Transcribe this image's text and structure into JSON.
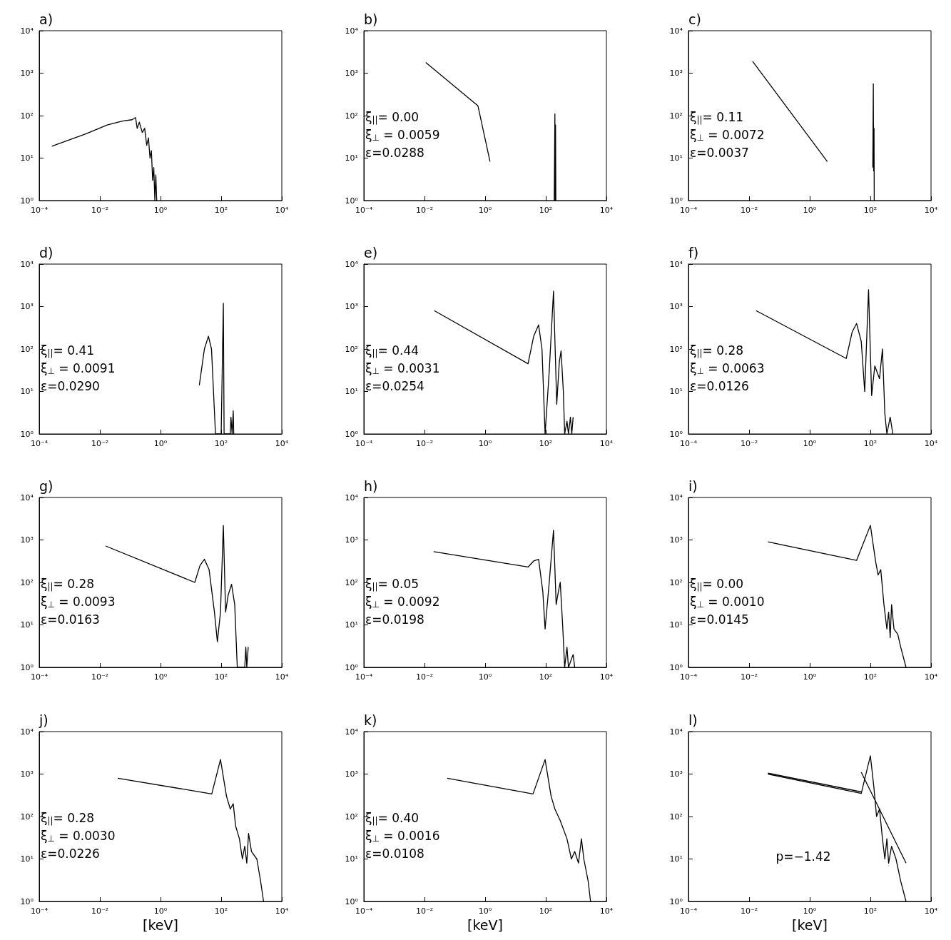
{
  "chart_data": [
    {
      "type": "line",
      "title": "a)",
      "log": "xy",
      "xlim": [
        0.0001,
        10000
      ],
      "ylim": [
        1,
        10000
      ],
      "xticks": [
        {
          "value": 0.0001,
          "label": "10⁻⁴"
        },
        {
          "value": 0.01,
          "label": "10⁻²"
        },
        {
          "value": 1,
          "label": "10⁰"
        },
        {
          "value": 100,
          "label": "10²"
        },
        {
          "value": 10000,
          "label": "10⁴"
        }
      ],
      "yticks": [
        {
          "value": 1,
          "label": "10⁰"
        },
        {
          "value": 10,
          "label": "10¹"
        },
        {
          "value": 100,
          "label": "10²"
        },
        {
          "value": 1000,
          "label": "10³"
        },
        {
          "value": 10000,
          "label": "10⁴"
        }
      ],
      "series": [
        {
          "color": "#000000",
          "x": [
            0.00026,
            0.0034,
            0.0174,
            0.04,
            0.06,
            0.115,
            0.15,
            0.17,
            0.2,
            0.25,
            0.3,
            0.35,
            0.4,
            0.45,
            0.5,
            0.55,
            0.6,
            0.65,
            0.7,
            0.75
          ],
          "values": [
            19,
            37,
            60,
            70,
            75,
            80,
            90,
            50,
            70,
            40,
            50,
            20,
            30,
            10,
            15,
            3,
            6,
            1,
            4,
            1
          ]
        }
      ]
    },
    {
      "type": "line",
      "title": "b)",
      "log": "xy",
      "xlim": [
        0.0001,
        10000
      ],
      "ylim": [
        1,
        10000
      ],
      "xticks": [
        {
          "value": 0.0001,
          "label": "10⁻⁴"
        },
        {
          "value": 0.01,
          "label": "10⁻²"
        },
        {
          "value": 1,
          "label": "10⁰"
        },
        {
          "value": 100,
          "label": "10²"
        },
        {
          "value": 10000,
          "label": "10⁴"
        }
      ],
      "yticks": [
        {
          "value": 1,
          "label": "10⁰"
        },
        {
          "value": 10,
          "label": "10¹"
        },
        {
          "value": 100,
          "label": "10²"
        },
        {
          "value": 1000,
          "label": "10³"
        },
        {
          "value": 10000,
          "label": "10⁴"
        }
      ],
      "annotations": [
        "ξ$_{||}$= 0.00",
        "ξ$_{⊥}$ = 0.0059",
        "ε=0.0288"
      ],
      "series": [
        {
          "color": "#000000",
          "x": [
            0.011,
            0.58,
            1.45,
            100,
            190,
            200,
            205,
            210,
            215
          ],
          "values": [
            1780,
            170,
            8.3,
            null,
            1,
            110,
            1,
            60,
            1
          ]
        }
      ]
    },
    {
      "type": "line",
      "title": "c)",
      "log": "xy",
      "xlim": [
        0.0001,
        10000
      ],
      "ylim": [
        1,
        10000
      ],
      "xticks": [
        {
          "value": 0.0001,
          "label": "10⁻⁴"
        },
        {
          "value": 0.01,
          "label": "10⁻²"
        },
        {
          "value": 1,
          "label": "10⁰"
        },
        {
          "value": 100,
          "label": "10²"
        },
        {
          "value": 10000,
          "label": "10⁴"
        }
      ],
      "yticks": [
        {
          "value": 1,
          "label": "10⁰"
        },
        {
          "value": 10,
          "label": "10¹"
        },
        {
          "value": 100,
          "label": "10²"
        },
        {
          "value": 1000,
          "label": "10³"
        },
        {
          "value": 10000,
          "label": "10⁴"
        }
      ],
      "annotations": [
        "ξ$_{||}$= 0.11",
        "ξ$_{⊥}$ = 0.0072",
        "ε=0.0037"
      ],
      "series": [
        {
          "color": "#000000",
          "x": [
            0.013,
            3.8,
            50,
            120,
            125,
            128,
            132,
            134
          ],
          "values": [
            1900,
            8.3,
            null,
            6,
            560,
            5,
            50,
            1
          ]
        }
      ]
    },
    {
      "type": "line",
      "title": "d)",
      "log": "xy",
      "xlim": [
        0.0001,
        10000
      ],
      "ylim": [
        1,
        10000
      ],
      "xticks": [
        {
          "value": 0.0001,
          "label": "10⁻⁴"
        },
        {
          "value": 0.01,
          "label": "10⁻²"
        },
        {
          "value": 1,
          "label": "10⁰"
        },
        {
          "value": 100,
          "label": "10²"
        },
        {
          "value": 10000,
          "label": "10⁴"
        }
      ],
      "yticks": [
        {
          "value": 1,
          "label": "10⁰"
        },
        {
          "value": 10,
          "label": "10¹"
        },
        {
          "value": 100,
          "label": "10²"
        },
        {
          "value": 1000,
          "label": "10³"
        },
        {
          "value": 10000,
          "label": "10⁴"
        }
      ],
      "annotations": [
        "ξ$_{||}$= 0.41",
        "ξ$_{⊥}$ = 0.0091",
        "ε=0.0290"
      ],
      "series": [
        {
          "color": "#000000",
          "x": [
            19,
            28,
            38,
            48,
            65,
            100,
            118,
            125,
            200,
            210,
            230,
            250,
            260
          ],
          "values": [
            14,
            100,
            200,
            100,
            1,
            1,
            1200,
            1,
            1,
            2.5,
            1,
            3.5,
            1
          ]
        }
      ]
    },
    {
      "type": "line",
      "title": "e)",
      "log": "xy",
      "xlim": [
        0.0001,
        10000
      ],
      "ylim": [
        1,
        10000
      ],
      "xticks": [
        {
          "value": 0.0001,
          "label": "10⁻⁴"
        },
        {
          "value": 0.01,
          "label": "10⁻²"
        },
        {
          "value": 1,
          "label": "10⁰"
        },
        {
          "value": 100,
          "label": "10²"
        },
        {
          "value": 10000,
          "label": "10⁴"
        }
      ],
      "yticks": [
        {
          "value": 1,
          "label": "10⁰"
        },
        {
          "value": 10,
          "label": "10¹"
        },
        {
          "value": 100,
          "label": "10²"
        },
        {
          "value": 1000,
          "label": "10³"
        },
        {
          "value": 10000,
          "label": "10⁴"
        }
      ],
      "annotations": [
        "ξ$_{||}$= 0.44",
        "ξ$_{⊥}$ = 0.0031",
        "ε=0.0254"
      ],
      "series": [
        {
          "color": "#000000",
          "x": [
            0.021,
            26,
            40,
            58,
            75,
            95,
            130,
            180,
            230,
            280,
            320,
            380,
            420,
            500,
            560,
            650,
            720,
            800
          ],
          "values": [
            800,
            45,
            200,
            370,
            100,
            1,
            30,
            2300,
            5,
            50,
            90,
            10,
            1,
            2,
            1,
            2.5,
            1,
            2.5
          ]
        }
      ]
    },
    {
      "type": "line",
      "title": "f)",
      "log": "xy",
      "xlim": [
        0.0001,
        10000
      ],
      "ylim": [
        1,
        10000
      ],
      "xticks": [
        {
          "value": 0.0001,
          "label": "10⁻⁴"
        },
        {
          "value": 0.01,
          "label": "10⁻²"
        },
        {
          "value": 1,
          "label": "10⁰"
        },
        {
          "value": 100,
          "label": "10²"
        },
        {
          "value": 10000,
          "label": "10⁴"
        }
      ],
      "yticks": [
        {
          "value": 1,
          "label": "10⁰"
        },
        {
          "value": 10,
          "label": "10¹"
        },
        {
          "value": 100,
          "label": "10²"
        },
        {
          "value": 1000,
          "label": "10³"
        },
        {
          "value": 10000,
          "label": "10⁴"
        }
      ],
      "annotations": [
        "ξ$_{||}$= 0.28",
        "ξ$_{⊥}$ = 0.0063",
        "ε=0.0126"
      ],
      "series": [
        {
          "color": "#000000",
          "x": [
            0.017,
            16,
            25,
            35,
            50,
            65,
            87,
            110,
            140,
            200,
            250,
            300,
            350,
            450,
            550
          ],
          "values": [
            800,
            60,
            250,
            400,
            150,
            10,
            2500,
            8,
            40,
            20,
            100,
            3,
            1,
            2.5,
            1
          ]
        }
      ]
    },
    {
      "type": "line",
      "title": "g)",
      "log": "xy",
      "xlim": [
        0.0001,
        10000
      ],
      "ylim": [
        1,
        10000
      ],
      "xticks": [
        {
          "value": 0.0001,
          "label": "10⁻⁴"
        },
        {
          "value": 0.01,
          "label": "10⁻²"
        },
        {
          "value": 1,
          "label": "10⁰"
        },
        {
          "value": 100,
          "label": "10²"
        },
        {
          "value": 10000,
          "label": "10⁴"
        }
      ],
      "yticks": [
        {
          "value": 1,
          "label": "10⁰"
        },
        {
          "value": 10,
          "label": "10¹"
        },
        {
          "value": 100,
          "label": "10²"
        },
        {
          "value": 1000,
          "label": "10³"
        },
        {
          "value": 10000,
          "label": "10⁴"
        }
      ],
      "annotations": [
        "ξ$_{||}$= 0.28",
        "ξ$_{⊥}$ = 0.0093",
        "ε=0.0163"
      ],
      "series": [
        {
          "color": "#000000",
          "x": [
            0.0155,
            13.5,
            20,
            28,
            40,
            60,
            75,
            95,
            118,
            140,
            170,
            220,
            280,
            340,
            600,
            650,
            700,
            780
          ],
          "values": [
            720,
            100,
            250,
            350,
            200,
            20,
            4,
            20,
            2200,
            20,
            50,
            90,
            30,
            1,
            1,
            3,
            1,
            3
          ]
        }
      ]
    },
    {
      "type": "line",
      "title": "h)",
      "log": "xy",
      "xlim": [
        0.0001,
        10000
      ],
      "ylim": [
        1,
        10000
      ],
      "xticks": [
        {
          "value": 0.0001,
          "label": "10⁻⁴"
        },
        {
          "value": 0.01,
          "label": "10⁻²"
        },
        {
          "value": 1,
          "label": "10⁰"
        },
        {
          "value": 100,
          "label": "10²"
        },
        {
          "value": 10000,
          "label": "10⁴"
        }
      ],
      "yticks": [
        {
          "value": 1,
          "label": "10⁰"
        },
        {
          "value": 10,
          "label": "10¹"
        },
        {
          "value": 100,
          "label": "10²"
        },
        {
          "value": 1000,
          "label": "10³"
        },
        {
          "value": 10000,
          "label": "10⁴"
        }
      ],
      "annotations": [
        "ξ$_{||}$= 0.05",
        "ξ$_{⊥}$ = 0.0092",
        "ε=0.0198"
      ],
      "series": [
        {
          "color": "#000000",
          "x": [
            0.02,
            26,
            40,
            58,
            80,
            95,
            130,
            180,
            220,
            260,
            300,
            360,
            420,
            500,
            560,
            800,
            900
          ],
          "values": [
            530,
            230,
            320,
            350,
            60,
            8,
            100,
            1700,
            30,
            60,
            100,
            10,
            1,
            3,
            1,
            2,
            1
          ]
        }
      ]
    },
    {
      "type": "line",
      "title": "i)",
      "log": "xy",
      "xlim": [
        0.0001,
        10000
      ],
      "ylim": [
        1,
        10000
      ],
      "xticks": [
        {
          "value": 0.0001,
          "label": "10⁻⁴"
        },
        {
          "value": 0.01,
          "label": "10⁻²"
        },
        {
          "value": 1,
          "label": "10⁰"
        },
        {
          "value": 100,
          "label": "10²"
        },
        {
          "value": 10000,
          "label": "10⁴"
        }
      ],
      "yticks": [
        {
          "value": 1,
          "label": "10⁰"
        },
        {
          "value": 10,
          "label": "10¹"
        },
        {
          "value": 100,
          "label": "10²"
        },
        {
          "value": 1000,
          "label": "10³"
        },
        {
          "value": 10000,
          "label": "10⁴"
        }
      ],
      "annotations": [
        "ξ$_{||}$= 0.00",
        "ξ$_{⊥}$ = 0.0010",
        "ε=0.0145"
      ],
      "series": [
        {
          "color": "#000000",
          "x": [
            0.042,
            35,
            100,
            150,
            180,
            220,
            280,
            350,
            400,
            450,
            500,
            600,
            800,
            1000,
            1500
          ],
          "values": [
            900,
            330,
            2200,
            300,
            150,
            200,
            30,
            8,
            20,
            5,
            30,
            8,
            6,
            3,
            1
          ]
        }
      ]
    },
    {
      "type": "line",
      "title": "j)",
      "xlabel": "[keV]",
      "log": "xy",
      "xlim": [
        0.0001,
        10000
      ],
      "ylim": [
        1,
        10000
      ],
      "xticks": [
        {
          "value": 0.0001,
          "label": "10⁻⁴"
        },
        {
          "value": 0.01,
          "label": "10⁻²"
        },
        {
          "value": 1,
          "label": "10⁰"
        },
        {
          "value": 100,
          "label": "10²"
        },
        {
          "value": 10000,
          "label": "10⁴"
        }
      ],
      "yticks": [
        {
          "value": 1,
          "label": "10⁰"
        },
        {
          "value": 10,
          "label": "10¹"
        },
        {
          "value": 100,
          "label": "10²"
        },
        {
          "value": 1000,
          "label": "10³"
        },
        {
          "value": 10000,
          "label": "10⁴"
        }
      ],
      "annotations": [
        "ξ$_{||}$= 0.28",
        "ξ$_{⊥}$ = 0.0030",
        "ε=0.0226"
      ],
      "series": [
        {
          "color": "#000000",
          "x": [
            0.039,
            49,
            95,
            150,
            200,
            250,
            300,
            400,
            500,
            600,
            700,
            800,
            1000,
            1500,
            2000,
            2500
          ],
          "values": [
            800,
            340,
            2200,
            300,
            150,
            200,
            60,
            30,
            10,
            20,
            8,
            40,
            15,
            10,
            3,
            1
          ]
        }
      ]
    },
    {
      "type": "line",
      "title": "k)",
      "xlabel": "[keV]",
      "log": "xy",
      "xlim": [
        0.0001,
        10000
      ],
      "ylim": [
        1,
        10000
      ],
      "xticks": [
        {
          "value": 0.0001,
          "label": "10⁻⁴"
        },
        {
          "value": 0.01,
          "label": "10⁻²"
        },
        {
          "value": 1,
          "label": "10⁰"
        },
        {
          "value": 100,
          "label": "10²"
        },
        {
          "value": 10000,
          "label": "10⁴"
        }
      ],
      "yticks": [
        {
          "value": 1,
          "label": "10⁰"
        },
        {
          "value": 10,
          "label": "10¹"
        },
        {
          "value": 100,
          "label": "10²"
        },
        {
          "value": 1000,
          "label": "10³"
        },
        {
          "value": 10000,
          "label": "10⁴"
        }
      ],
      "annotations": [
        "ξ$_{||}$= 0.40",
        "ξ$_{⊥}$ = 0.0016",
        "ε=0.0108"
      ],
      "series": [
        {
          "color": "#000000",
          "x": [
            0.056,
            38,
            95,
            150,
            200,
            300,
            500,
            700,
            900,
            1200,
            1500,
            1800,
            2500,
            3000
          ],
          "values": [
            800,
            340,
            2200,
            300,
            150,
            80,
            30,
            10,
            15,
            8,
            30,
            10,
            3,
            1
          ]
        }
      ]
    },
    {
      "type": "line",
      "title": "l)",
      "xlabel": "[keV]",
      "log": "xy",
      "xlim": [
        0.0001,
        10000
      ],
      "ylim": [
        1,
        10000
      ],
      "xticks": [
        {
          "value": 0.0001,
          "label": "10⁻⁴"
        },
        {
          "value": 0.01,
          "label": "10⁻²"
        },
        {
          "value": 1,
          "label": "10⁰"
        },
        {
          "value": 100,
          "label": "10²"
        },
        {
          "value": 10000,
          "label": "10⁴"
        }
      ],
      "yticks": [
        {
          "value": 1,
          "label": "10⁰"
        },
        {
          "value": 10,
          "label": "10¹"
        },
        {
          "value": 100,
          "label": "10²"
        },
        {
          "value": 1000,
          "label": "10³"
        },
        {
          "value": 10000,
          "label": "10⁴"
        }
      ],
      "annotations": [
        "p=−1.42"
      ],
      "series": [
        {
          "color": "#000000",
          "x": [
            0.042,
            50,
            100,
            130,
            160,
            200,
            250,
            300,
            350,
            400,
            500,
            700,
            1000,
            1500
          ],
          "values": [
            1000,
            350,
            2700,
            500,
            100,
            150,
            30,
            10,
            30,
            8,
            20,
            10,
            3,
            1
          ]
        },
        {
          "color": "#000000",
          "x": [
            0.042,
            50
          ],
          "values": [
            1050,
            380
          ]
        },
        {
          "color": "#000000",
          "x": [
            50,
            1500
          ],
          "values": [
            1100,
            8
          ]
        }
      ]
    }
  ]
}
